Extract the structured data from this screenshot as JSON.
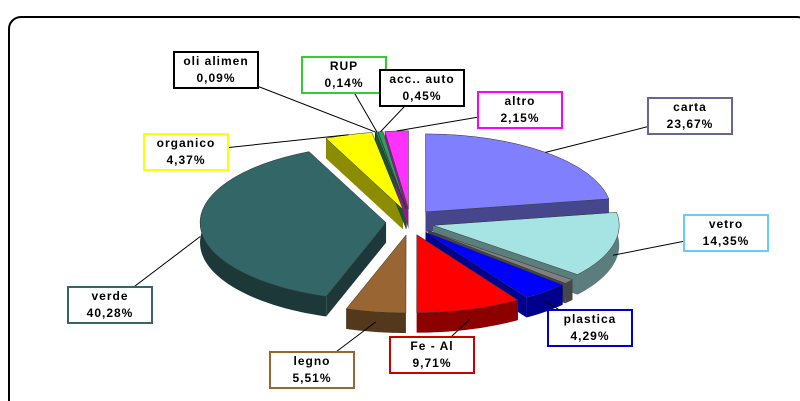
{
  "chart_data": {
    "type": "pie3d",
    "categories": [
      "carta",
      "vetro",
      null,
      "plastica",
      "Fe - Al",
      "legno",
      "verde",
      "organico",
      "oli alimen",
      "RUP",
      "acc.. auto",
      "altro"
    ],
    "values": [
      23.67,
      14.35,
      1.0,
      4.29,
      9.71,
      5.51,
      40.28,
      4.37,
      0.09,
      0.14,
      0.45,
      2.15
    ],
    "value_labels": [
      "23,67%",
      "14,35%",
      null,
      "4,29%",
      "9,71%",
      "5,51%",
      "40,28%",
      "4,37%",
      "0,09%",
      "0,14%",
      "0,45%",
      "2,15%"
    ],
    "colors": [
      "#8080ff",
      "#a6e3e3",
      "#808080",
      "#0000ff",
      "#ff0000",
      "#996633",
      "#336666",
      "#ffff00",
      "#663399",
      "#00cc33",
      "#339966",
      "#ff33ff"
    ],
    "label_borders": [
      "#666699",
      "#66ccff",
      null,
      "#0000cc",
      "#cc0000",
      "#996633",
      "#336666",
      "#ffff00",
      "#000000",
      "#33cc33",
      "#000000",
      "#ff00ff"
    ]
  }
}
